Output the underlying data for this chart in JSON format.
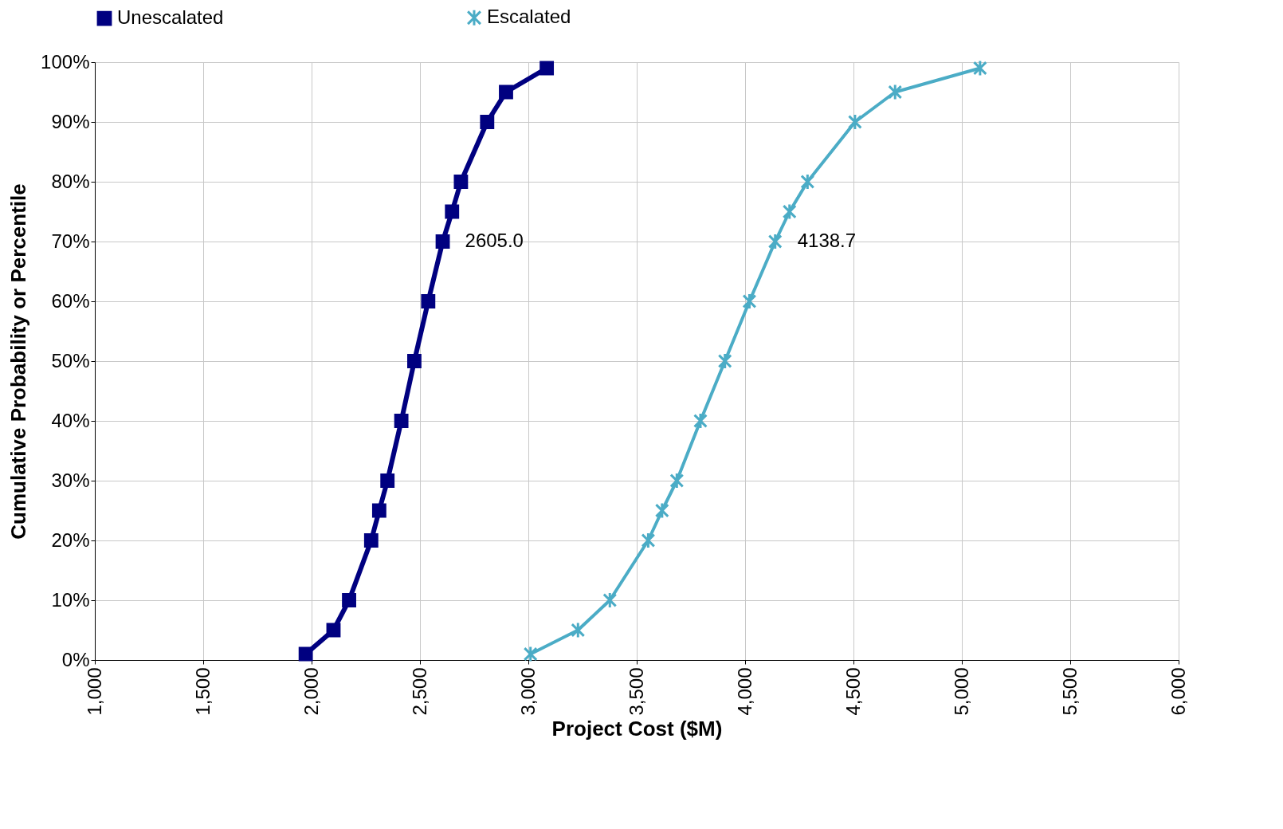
{
  "chart_data": {
    "type": "line",
    "xlabel": "Project Cost ($M)",
    "ylabel": "Cumulative Probability or Percentile",
    "series": [
      {
        "name": "Unescalated",
        "color": "#000080",
        "marker": "square",
        "x": [
          1973,
          2101,
          2173,
          2275,
          2312,
          2350,
          2414,
          2474,
          2538,
          2605,
          2648,
          2689,
          2810,
          2897,
          3085
        ],
        "values": [
          1,
          5,
          10,
          20,
          25,
          30,
          40,
          50,
          60,
          70,
          75,
          80,
          90,
          95,
          99
        ]
      },
      {
        "name": "Escalated",
        "color": "#4bacc6",
        "marker": "cross",
        "x": [
          3010,
          3229,
          3376,
          3553,
          3617,
          3685,
          3794,
          3907,
          4020,
          4138.7,
          4205,
          4288,
          4507,
          4692,
          5084
        ],
        "values": [
          1,
          5,
          10,
          20,
          25,
          30,
          40,
          50,
          60,
          70,
          75,
          80,
          90,
          95,
          99
        ]
      }
    ],
    "annotations": [
      {
        "text": "2605.0",
        "x": 2605,
        "y": 70
      },
      {
        "text": "4138.7",
        "x": 4138.7,
        "y": 70
      }
    ],
    "xlim": [
      1000,
      6000
    ],
    "xticks": [
      {
        "value": 1000,
        "label": "1,000"
      },
      {
        "value": 1500,
        "label": "1,500"
      },
      {
        "value": 2000,
        "label": "2,000"
      },
      {
        "value": 2500,
        "label": "2,500"
      },
      {
        "value": 3000,
        "label": "3,000"
      },
      {
        "value": 3500,
        "label": "3,500"
      },
      {
        "value": 4000,
        "label": "4,000"
      },
      {
        "value": 4500,
        "label": "4,500"
      },
      {
        "value": 5000,
        "label": "5,000"
      },
      {
        "value": 5500,
        "label": "5,500"
      },
      {
        "value": 6000,
        "label": "6,000"
      }
    ],
    "ylim": [
      0,
      100
    ],
    "yticks": [
      {
        "value": 0,
        "label": "0%"
      },
      {
        "value": 10,
        "label": "10%"
      },
      {
        "value": 20,
        "label": "20%"
      },
      {
        "value": 30,
        "label": "30%"
      },
      {
        "value": 40,
        "label": "40%"
      },
      {
        "value": 50,
        "label": "50%"
      },
      {
        "value": 60,
        "label": "60%"
      },
      {
        "value": 70,
        "label": "70%"
      },
      {
        "value": 80,
        "label": "80%"
      },
      {
        "value": 90,
        "label": "90%"
      },
      {
        "value": 100,
        "label": "100%"
      }
    ],
    "grid": true,
    "legend": "top",
    "line_style": "solid"
  }
}
